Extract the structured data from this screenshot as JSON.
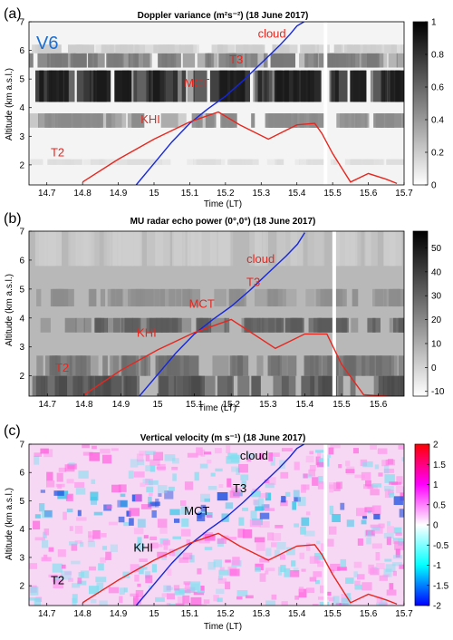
{
  "chart_data": [
    {
      "type": "heatmap",
      "panel": "(a)",
      "title": "Doppler variance (m²s⁻²) (18 June 2017)",
      "xlabel": "Time (LT)",
      "ylabel": "Altitude (km a.s.l.)",
      "xlim": [
        14.65,
        15.7
      ],
      "ylim": [
        1.3,
        7.0
      ],
      "xticks": [
        14.7,
        14.8,
        14.9,
        15,
        15.1,
        15.2,
        15.3,
        15.4,
        15.5,
        15.6,
        15.7
      ],
      "yticks": [
        2,
        3,
        4,
        5,
        6,
        7
      ],
      "colorbar": {
        "min": 0,
        "max": 1,
        "ticks": [
          0,
          0.2,
          0.4,
          0.6,
          0.8,
          1
        ],
        "colormap": "gray-reversed"
      },
      "tag": "V6",
      "annotations": [
        {
          "text": "cloud",
          "x": 15.33,
          "y": 6.45,
          "color": "#e8261e"
        },
        {
          "text": "T3",
          "x": 15.23,
          "y": 5.55,
          "color": "#e8261e"
        },
        {
          "text": "MCT",
          "x": 15.12,
          "y": 4.72,
          "color": "#e8261e"
        },
        {
          "text": "KHI",
          "x": 14.99,
          "y": 3.45,
          "color": "#e8261e"
        },
        {
          "text": "T2",
          "x": 14.73,
          "y": 2.3,
          "color": "#e8261e"
        }
      ],
      "series": [
        {
          "color": "#1426e0",
          "x": [
            14.95,
            15.0,
            15.05,
            15.1,
            15.15,
            15.2,
            15.25,
            15.3,
            15.35,
            15.38,
            15.4,
            15.42
          ],
          "y": [
            1.3,
            2.05,
            2.8,
            3.45,
            3.95,
            4.4,
            4.95,
            5.55,
            6.15,
            6.55,
            6.85,
            7.0
          ]
        },
        {
          "color": "#e8261e",
          "x": [
            14.8,
            14.9,
            15.0,
            15.1,
            15.18,
            15.24,
            15.32,
            15.4,
            15.45,
            15.47,
            15.5,
            15.55,
            15.6,
            15.65,
            15.68
          ],
          "y": [
            1.4,
            2.2,
            2.9,
            3.5,
            3.85,
            3.4,
            2.9,
            3.4,
            3.45,
            3.1,
            2.4,
            1.4,
            1.7,
            1.5,
            1.35
          ]
        }
      ]
    },
    {
      "type": "heatmap",
      "panel": "(b)",
      "title": "MU radar echo power (0°,0°) (18 June 2017)",
      "xlabel": "Time (LT)",
      "ylabel": "Altitude (km a.s.l.)",
      "xlim": [
        14.65,
        15.67
      ],
      "ylim": [
        1.3,
        7.0
      ],
      "xticks": [
        14.7,
        14.8,
        14.9,
        15,
        15.1,
        15.2,
        15.3,
        15.4,
        15.5,
        15.6
      ],
      "yticks": [
        2,
        3,
        4,
        5,
        6,
        7
      ],
      "colorbar": {
        "min": -12,
        "max": 57,
        "ticks": [
          -10,
          0,
          10,
          20,
          30,
          40,
          50
        ],
        "colormap": "gray"
      },
      "annotations": [
        {
          "text": "cloud",
          "x": 15.28,
          "y": 5.9,
          "color": "#e8261e"
        },
        {
          "text": "T3",
          "x": 15.26,
          "y": 5.1,
          "color": "#e8261e"
        },
        {
          "text": "MCT",
          "x": 15.12,
          "y": 4.35,
          "color": "#e8261e"
        },
        {
          "text": "KHI",
          "x": 14.97,
          "y": 3.35,
          "color": "#e8261e"
        },
        {
          "text": "T2",
          "x": 14.74,
          "y": 2.15,
          "color": "#e8261e"
        }
      ],
      "series": [
        {
          "color": "#1426e0",
          "x": [
            14.95,
            15.0,
            15.05,
            15.1,
            15.15,
            15.2,
            15.25,
            15.3,
            15.35,
            15.38,
            15.4
          ],
          "y": [
            1.3,
            2.05,
            2.8,
            3.45,
            3.95,
            4.4,
            4.95,
            5.55,
            6.15,
            6.55,
            6.95
          ]
        },
        {
          "color": "#e8261e",
          "x": [
            14.8,
            14.9,
            15.0,
            15.1,
            15.2,
            15.32,
            15.4,
            15.46,
            15.5,
            15.56,
            15.62,
            15.66
          ],
          "y": [
            1.35,
            2.2,
            2.9,
            3.5,
            3.95,
            2.95,
            3.45,
            3.45,
            2.4,
            1.35,
            1.3,
            1.25
          ]
        }
      ]
    },
    {
      "type": "heatmap",
      "panel": "(c)",
      "title": "Vertical velocity (m s⁻¹) (18 June 2017)",
      "xlabel": "Time (LT)",
      "ylabel": "Altitude (km a.s.l.)",
      "xlim": [
        14.65,
        15.7
      ],
      "ylim": [
        1.3,
        7.0
      ],
      "xticks": [
        14.7,
        14.8,
        14.9,
        15,
        15.1,
        15.2,
        15.3,
        15.4,
        15.5,
        15.6,
        15.7
      ],
      "yticks": [
        2,
        3,
        4,
        5,
        6,
        7
      ],
      "colorbar": {
        "min": -2,
        "max": 2,
        "ticks": [
          -2,
          -1.5,
          -1,
          -0.5,
          0,
          0.5,
          1,
          1.5,
          2
        ],
        "colormap": "blue-cyan-white-magenta-red"
      },
      "annotations": [
        {
          "text": "cloud",
          "x": 15.28,
          "y": 6.45,
          "color": "#000000"
        },
        {
          "text": "T3",
          "x": 15.24,
          "y": 5.3,
          "color": "#000000"
        },
        {
          "text": "MCT",
          "x": 15.12,
          "y": 4.5,
          "color": "#000000"
        },
        {
          "text": "KHI",
          "x": 14.97,
          "y": 3.2,
          "color": "#000000"
        },
        {
          "text": "T2",
          "x": 14.73,
          "y": 2.05,
          "color": "#000000"
        }
      ],
      "series": [
        {
          "color": "#1426e0",
          "x": [
            14.95,
            15.0,
            15.05,
            15.1,
            15.15,
            15.2,
            15.25,
            15.3,
            15.35,
            15.38,
            15.4,
            15.42
          ],
          "y": [
            1.3,
            2.05,
            2.8,
            3.45,
            3.95,
            4.4,
            4.95,
            5.55,
            6.15,
            6.55,
            6.85,
            7.0
          ]
        },
        {
          "color": "#e8261e",
          "x": [
            14.8,
            14.9,
            15.0,
            15.1,
            15.18,
            15.24,
            15.32,
            15.4,
            15.45,
            15.47,
            15.5,
            15.55,
            15.6,
            15.65,
            15.68
          ],
          "y": [
            1.4,
            2.2,
            2.9,
            3.5,
            3.85,
            3.4,
            2.9,
            3.4,
            3.45,
            3.1,
            2.4,
            1.4,
            1.7,
            1.5,
            1.35
          ]
        }
      ]
    }
  ]
}
